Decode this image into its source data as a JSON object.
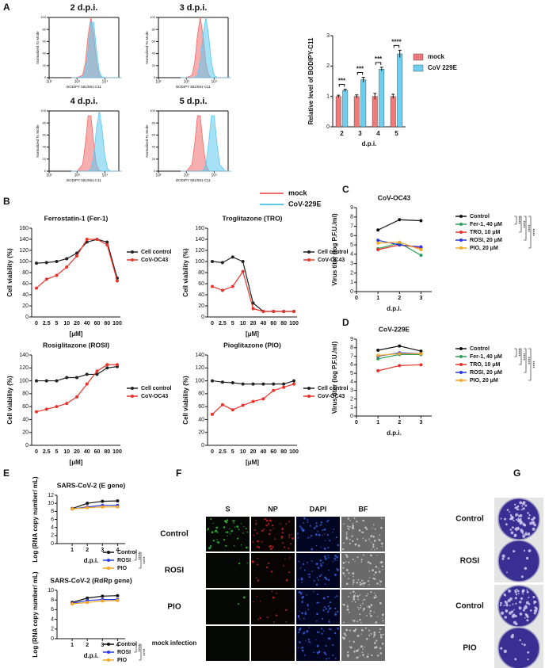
{
  "panel_labels": [
    "A",
    "B",
    "C",
    "D",
    "E",
    "F",
    "G"
  ],
  "histogram_legend": [
    {
      "name": "mock",
      "color": "#f06c6c"
    },
    {
      "name": "CoV-229E",
      "color": "#5cc8ee"
    }
  ],
  "chart_data": [
    {
      "type": "density",
      "title": "2 d.p.i.",
      "x_label": "BODIPY 581/591-C11",
      "y_label": "Normalized To Mode",
      "x": [
        2.8,
        3,
        3.2,
        3.3,
        3.4,
        3.5,
        3.6,
        3.7,
        3.8,
        3.9,
        4,
        4.1,
        4.2,
        4.4,
        4.6
      ],
      "xlim": [
        2,
        4.5
      ],
      "xticks": [
        {
          "value": 2,
          "label": "10²"
        },
        {
          "value": 3,
          "label": "10³"
        },
        {
          "value": 4,
          "label": "10⁴"
        }
      ],
      "ylim": [
        0,
        100
      ],
      "yticks": [
        0,
        20,
        40,
        60,
        80,
        100
      ],
      "series": [
        {
          "color": "#f06c6c",
          "values": [
            0,
            0,
            4,
            25,
            71,
            100,
            71,
            25,
            4,
            0,
            0,
            0,
            0,
            0,
            0
          ]
        },
        {
          "color": "#5cc8ee",
          "values": [
            0,
            0,
            1,
            11,
            46,
            92,
            92,
            46,
            11,
            1,
            0,
            0,
            0,
            0,
            0
          ]
        }
      ]
    },
    {
      "type": "density",
      "title": "3 d.p.i.",
      "x_label": "BODIPY 581/591-C11",
      "y_label": "Normalized To Mode",
      "x": [
        2.8,
        3,
        3.2,
        3.3,
        3.4,
        3.5,
        3.6,
        3.7,
        3.8,
        3.9,
        4,
        4.1,
        4.2,
        4.4,
        4.6
      ],
      "xlim": [
        2,
        4.5
      ],
      "xticks": [
        {
          "value": 2,
          "label": "10²"
        },
        {
          "value": 3,
          "label": "10³"
        },
        {
          "value": 4,
          "label": "10⁴"
        }
      ],
      "ylim": [
        0,
        100
      ],
      "yticks": [
        0,
        20,
        40,
        60,
        80,
        100
      ],
      "series": [
        {
          "color": "#f06c6c",
          "values": [
            0,
            0,
            4,
            25,
            71,
            100,
            71,
            25,
            4,
            0,
            0,
            0,
            0,
            0,
            0
          ]
        },
        {
          "color": "#5cc8ee",
          "values": [
            0,
            0,
            0,
            0,
            4,
            25,
            71,
            100,
            71,
            25,
            4,
            0,
            0,
            0,
            0
          ]
        }
      ]
    },
    {
      "type": "density",
      "title": "4 d.p.i.",
      "x_label": "BODIPY 581/591-C11",
      "y_label": "Normalized To Mode",
      "x": [
        2.8,
        3,
        3.2,
        3.3,
        3.4,
        3.5,
        3.6,
        3.7,
        3.8,
        3.9,
        4,
        4.1,
        4.2,
        4.4,
        4.6
      ],
      "xlim": [
        2,
        4.5
      ],
      "xticks": [
        {
          "value": 2,
          "label": "10²"
        },
        {
          "value": 3,
          "label": "10³"
        },
        {
          "value": 4,
          "label": "10⁴"
        }
      ],
      "ylim": [
        0,
        100
      ],
      "yticks": [
        0,
        20,
        40,
        60,
        80,
        100
      ],
      "series": [
        {
          "color": "#f06c6c",
          "values": [
            0,
            0,
            11,
            46,
            92,
            92,
            46,
            11,
            1,
            0,
            0,
            0,
            0,
            0,
            0
          ]
        },
        {
          "color": "#5cc8ee",
          "values": [
            0,
            0,
            0,
            0,
            0,
            4,
            25,
            71,
            100,
            71,
            25,
            4,
            0,
            0,
            0
          ]
        }
      ]
    },
    {
      "type": "density",
      "title": "5 d.p.i.",
      "x_label": "BODIPY 581/591-C11",
      "y_label": "Normalized To Mode",
      "x": [
        2.8,
        3,
        3.2,
        3.3,
        3.4,
        3.5,
        3.6,
        3.7,
        3.8,
        3.9,
        4,
        4.1,
        4.2,
        4.4,
        4.6
      ],
      "xlim": [
        2,
        4.5
      ],
      "xticks": [
        {
          "value": 2,
          "label": "10²"
        },
        {
          "value": 3,
          "label": "10³"
        },
        {
          "value": 4,
          "label": "10⁴"
        }
      ],
      "ylim": [
        0,
        100
      ],
      "yticks": [
        0,
        20,
        40,
        60,
        80,
        100
      ],
      "series": [
        {
          "color": "#f06c6c",
          "values": [
            0,
            0,
            11,
            46,
            92,
            92,
            46,
            11,
            1,
            0,
            0,
            0,
            0,
            0,
            0
          ]
        },
        {
          "color": "#5cc8ee",
          "values": [
            0,
            0,
            0,
            0,
            0,
            0,
            1,
            11,
            46,
            92,
            92,
            46,
            11,
            0,
            0
          ]
        }
      ]
    },
    {
      "type": "bar",
      "x_label": "d.p.i.",
      "y_label": "Relative level of BODIPY-C11",
      "categories": [
        "2",
        "3",
        "4",
        "5"
      ],
      "ylim": [
        0,
        3
      ],
      "yticks": [
        0,
        1,
        2,
        3
      ],
      "series": [
        {
          "name": "mock",
          "color": "#f07a7a",
          "values": [
            1,
            1,
            1,
            1
          ],
          "errors": [
            0.04,
            0.05,
            0.1,
            0.07
          ]
        },
        {
          "name": "CoV 229E",
          "color": "#6ccff0",
          "values": [
            1.2,
            1.55,
            1.9,
            2.4
          ],
          "errors": [
            0.04,
            0.08,
            0.06,
            0.12
          ]
        }
      ],
      "significance": [
        "***",
        "***",
        "***",
        "****"
      ]
    },
    {
      "type": "line",
      "title": "Ferrostatin-1 (Fer-1)",
      "x_label": "[μM]",
      "y_label": "Cell viability (%)",
      "categories": [
        "0",
        "2.5",
        "5",
        "10",
        "20",
        "40",
        "60",
        "80",
        "100"
      ],
      "ylim": [
        0,
        160
      ],
      "yticks": [
        0,
        20,
        40,
        60,
        80,
        100,
        120,
        140,
        160
      ],
      "series": [
        {
          "name": "Cell control",
          "color": "#222222",
          "values": [
            97,
            98,
            100,
            105,
            115,
            135,
            140,
            135,
            70
          ]
        },
        {
          "name": "CoV-OC43",
          "color": "#e8332a",
          "values": [
            52,
            68,
            75,
            90,
            110,
            140,
            140,
            130,
            65
          ]
        }
      ]
    },
    {
      "type": "line",
      "title": "Troglitazone (TRO)",
      "x_label": "[μM]",
      "y_label": "Cell viability (%)",
      "categories": [
        "0",
        "2.5",
        "5",
        "10",
        "20",
        "40",
        "60",
        "80",
        "100"
      ],
      "ylim": [
        0,
        160
      ],
      "yticks": [
        0,
        20,
        40,
        60,
        80,
        100,
        120,
        140,
        160
      ],
      "series": [
        {
          "name": "Cell control",
          "color": "#222222",
          "values": [
            100,
            98,
            108,
            100,
            25,
            10,
            10,
            10,
            10
          ]
        },
        {
          "name": "CoV-OC43",
          "color": "#e8332a",
          "values": [
            55,
            48,
            55,
            82,
            15,
            10,
            10,
            10,
            10
          ]
        }
      ]
    },
    {
      "type": "line",
      "title": "Rosiglitazone (ROSI)",
      "x_label": "[μM]",
      "y_label": "Cell viability (%)",
      "categories": [
        "0",
        "2.5",
        "5",
        "10",
        "20",
        "40",
        "60",
        "80",
        "100"
      ],
      "ylim": [
        0,
        140
      ],
      "yticks": [
        0,
        20,
        40,
        60,
        80,
        100,
        120,
        140
      ],
      "series": [
        {
          "name": "Cell control",
          "color": "#222222",
          "values": [
            100,
            100,
            100,
            105,
            105,
            110,
            110,
            120,
            122
          ]
        },
        {
          "name": "CoV-OC43",
          "color": "#e8332a",
          "values": [
            52,
            56,
            60,
            65,
            75,
            95,
            115,
            125,
            125
          ]
        }
      ]
    },
    {
      "type": "line",
      "title": "Pioglitazone (PIO)",
      "x_label": "[μM]",
      "y_label": "Cell viability (%)",
      "categories": [
        "0",
        "2.5",
        "5",
        "10",
        "20",
        "40",
        "60",
        "80",
        "100"
      ],
      "ylim": [
        0,
        140
      ],
      "yticks": [
        0,
        20,
        40,
        60,
        80,
        100,
        120,
        140
      ],
      "series": [
        {
          "name": "Cell control",
          "color": "#222222",
          "values": [
            100,
            98,
            97,
            95,
            95,
            95,
            95,
            95,
            100
          ]
        },
        {
          "name": "CoV-OC43",
          "color": "#e8332a",
          "values": [
            48,
            63,
            55,
            62,
            68,
            72,
            85,
            90,
            95
          ]
        }
      ]
    },
    {
      "type": "line",
      "title": "CoV-OC43",
      "x_label": "d.p.i.",
      "y_label": "Virus titer (log P.F.U./ml)",
      "x": [
        1,
        2,
        3
      ],
      "xlim": [
        0,
        3.5
      ],
      "xticks": [
        0,
        1,
        2,
        3
      ],
      "ylim": [
        0,
        9
      ],
      "yticks": [
        0,
        1,
        2,
        3,
        4,
        5,
        6,
        7,
        8,
        9
      ],
      "series": [
        {
          "name": "Control",
          "color": "#111111",
          "values": [
            6.6,
            7.7,
            7.6
          ]
        },
        {
          "name": "Fer-1, 40 μM",
          "color": "#2e9e5b",
          "values": [
            4.6,
            5.2,
            3.9
          ]
        },
        {
          "name": "TRO, 10 μM",
          "color": "#e8332a",
          "values": [
            4.5,
            5.0,
            4.7
          ]
        },
        {
          "name": "ROSI, 20 μM",
          "color": "#2a39e0",
          "values": [
            5.5,
            5.0,
            4.8
          ]
        },
        {
          "name": "PIO, 20 μM",
          "color": "#f5a623",
          "values": [
            5.2,
            5.3,
            4.5
          ]
        }
      ],
      "significance": [
        "****",
        "****",
        "****",
        "****"
      ]
    },
    {
      "type": "line",
      "title": "CoV-229E",
      "x_label": "d.p.i.",
      "y_label": "Virus titer (log P.F.U./ml)",
      "x": [
        1,
        2,
        3
      ],
      "xlim": [
        0,
        3.5
      ],
      "xticks": [
        0,
        1,
        2,
        3
      ],
      "ylim": [
        0,
        9
      ],
      "yticks": [
        0,
        1,
        2,
        3,
        4,
        5,
        6,
        7,
        8,
        9
      ],
      "series": [
        {
          "name": "Control",
          "color": "#111111",
          "values": [
            7.7,
            8.2,
            7.6
          ]
        },
        {
          "name": "Fer-1, 40 μM",
          "color": "#2e9e5b",
          "values": [
            6.7,
            7.2,
            7.2
          ]
        },
        {
          "name": "TRO, 10 μM",
          "color": "#e8332a",
          "values": [
            5.3,
            5.9,
            6.0
          ]
        },
        {
          "name": "ROSI, 20 μM",
          "color": "#2a39e0",
          "values": [
            7.0,
            7.4,
            7.3
          ]
        },
        {
          "name": "PIO, 20 μM",
          "color": "#f5a623",
          "values": [
            7.1,
            7.3,
            7.3
          ]
        }
      ],
      "significance": [
        "****",
        "****",
        "****",
        "****"
      ]
    },
    {
      "type": "line",
      "title": "SARS-CoV-2 (E gene)",
      "x_label": "d.p.i.",
      "y_label": "Log (RNA copy number/ mL)",
      "x": [
        1,
        2,
        3,
        4
      ],
      "xlim": [
        0,
        4.5
      ],
      "xticks": [
        1,
        2,
        3,
        4
      ],
      "ylim": [
        0,
        12
      ],
      "yticks": [
        0,
        2,
        4,
        6,
        8,
        10,
        12
      ],
      "series": [
        {
          "name": "Control",
          "color": "#111111",
          "values": [
            8.7,
            10.0,
            10.5,
            10.6
          ]
        },
        {
          "name": "ROSI",
          "color": "#2a39e0",
          "values": [
            8.6,
            9.1,
            9.5,
            9.5
          ]
        },
        {
          "name": "PIO",
          "color": "#f5a623",
          "values": [
            8.6,
            8.9,
            9.1,
            9.1
          ]
        }
      ],
      "significance": [
        "****",
        "****"
      ]
    },
    {
      "type": "line",
      "title": "SARS-CoV-2 (RdRp gene)",
      "x_label": "d.p.i.",
      "y_label": "Log (RNA copy number/ mL)",
      "x": [
        1,
        2,
        3,
        4
      ],
      "xlim": [
        0,
        4.5
      ],
      "xticks": [
        1,
        2,
        3,
        4
      ],
      "ylim": [
        0,
        10
      ],
      "yticks": [
        0,
        2,
        4,
        6,
        8,
        10
      ],
      "series": [
        {
          "name": "Control",
          "color": "#111111",
          "values": [
            7.5,
            8.4,
            8.8,
            8.9
          ]
        },
        {
          "name": "ROSI",
          "color": "#2a39e0",
          "values": [
            7.3,
            7.9,
            8.1,
            8.1
          ]
        },
        {
          "name": "PIO",
          "color": "#f5a623",
          "values": [
            7.2,
            7.5,
            7.8,
            7.9
          ]
        }
      ],
      "significance": [
        "****",
        "****"
      ]
    }
  ],
  "microscopy": {
    "columns": [
      "S",
      "NP",
      "DAPI",
      "BF"
    ],
    "rows": [
      "Control",
      "ROSI",
      "PIO",
      "mock infection"
    ]
  },
  "plaque_assay": {
    "rows": [
      "Control",
      "ROSI",
      "Control",
      "PIO"
    ]
  }
}
